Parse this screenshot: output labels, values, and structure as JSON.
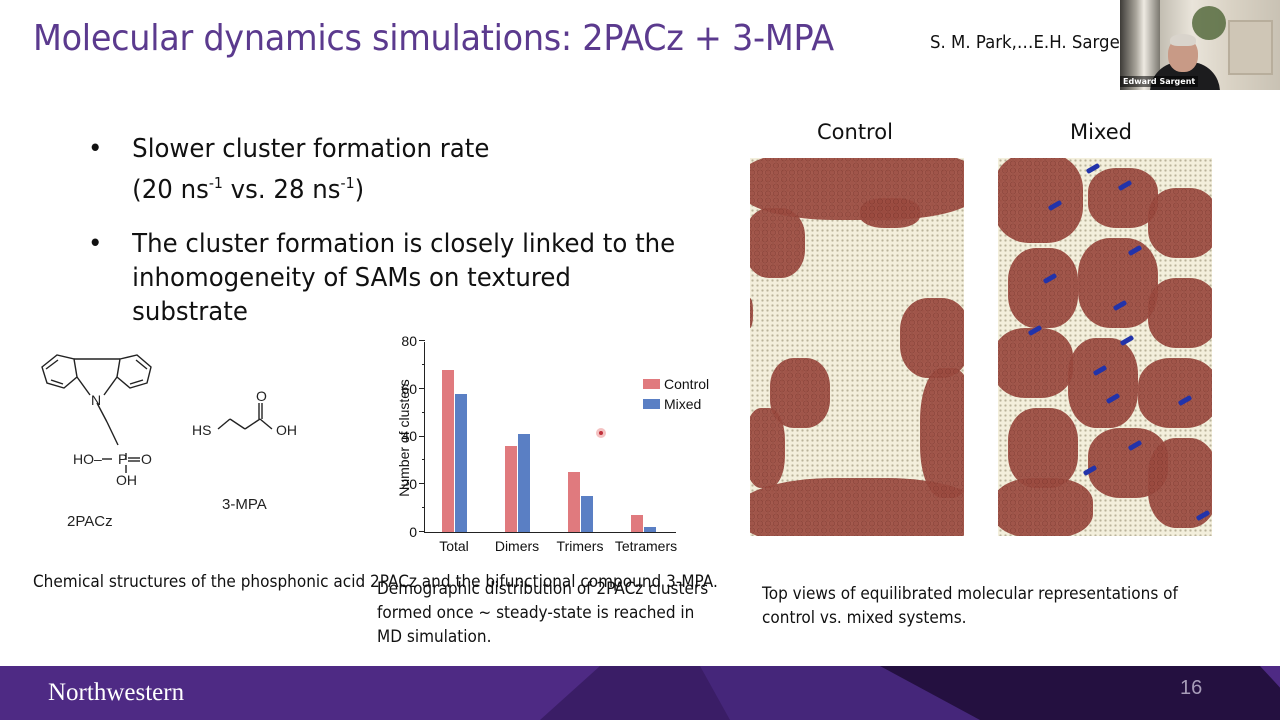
{
  "slide": {
    "title": "Molecular dynamics simulations: 2PACz + 3-MPA",
    "citation": "S. M. Park,…E.H. Sarge",
    "page_number": "16",
    "footer_logo": "Northwestern",
    "colors": {
      "title": "#5b3a8e",
      "footer": "#4e2a84",
      "control": "#e07a7e",
      "mixed": "#5a7fc4"
    }
  },
  "video": {
    "participant_name": "Edward Sargent"
  },
  "bullets": [
    {
      "text": "Slower cluster formation rate",
      "line2_prefix": "(20 ns",
      "sup1": "-1",
      "line2_mid": " vs. 28 ns",
      "sup2": "-1",
      "line2_suffix": ")"
    },
    {
      "text": "The cluster formation is closely linked to the inhomogeneity of SAMs on textured substrate"
    }
  ],
  "bullet_glyph": "•",
  "molecules": {
    "mol1_label": "2PACz",
    "mol2_label": "3-MPA",
    "atoms": {
      "N": "N",
      "HO": "HO",
      "P": "P",
      "O": "O",
      "OH": "OH",
      "HS": "HS"
    }
  },
  "captions": {
    "molecules": "Chemical structures of the phosphonic acid 2PACz and the bifunctional compound 3-MPA.",
    "chart": "Demographic distribution of 2PACz clusters formed once ~ steady-state is reached in MD simulation.",
    "md": "Top views of equilibrated molecular representations of control vs. mixed systems."
  },
  "md_panels": {
    "left_label": "Control",
    "right_label": "Mixed"
  },
  "chart_data": {
    "type": "bar",
    "title": "",
    "xlabel": "",
    "ylabel": "Number of clusters",
    "categories": [
      "Total",
      "Dimers",
      "Trimers",
      "Tetramers"
    ],
    "series": [
      {
        "name": "Control",
        "color": "#e07a7e",
        "values": [
          68,
          36,
          25,
          7
        ]
      },
      {
        "name": "Mixed",
        "color": "#5a7fc4",
        "values": [
          58,
          41,
          15,
          2
        ]
      }
    ],
    "ylim": [
      0,
      80
    ],
    "yticks": [
      "0",
      "20",
      "40",
      "60",
      "80"
    ],
    "grid": false,
    "legend_position": "upper right"
  }
}
